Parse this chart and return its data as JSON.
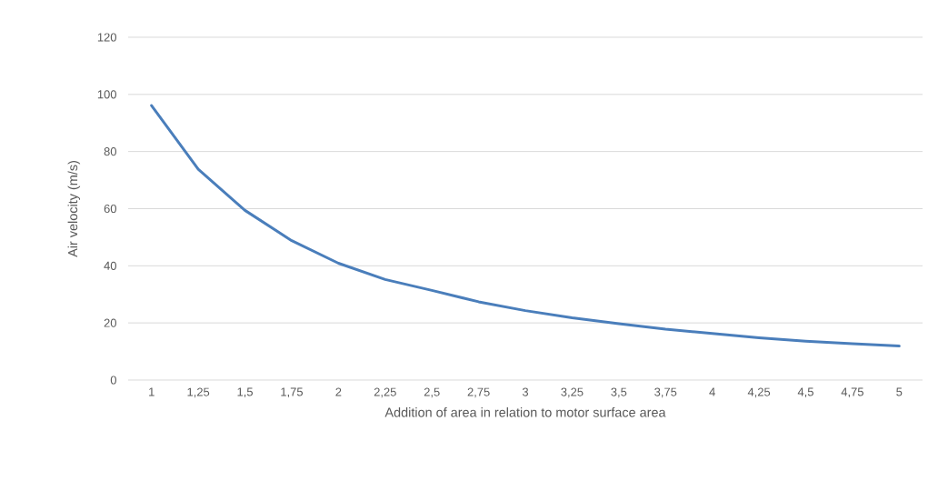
{
  "chart_data": {
    "type": "line",
    "xlabel": "Addition of area in relation to motor surface area",
    "ylabel": "Air velocity (m/s)",
    "categories": [
      "1",
      "1,25",
      "1,5",
      "1,75",
      "2",
      "2,25",
      "2,5",
      "2,75",
      "3",
      "3,25",
      "3,5",
      "3,75",
      "4",
      "4,25",
      "4,5",
      "4,75",
      "5"
    ],
    "series": [
      {
        "color": "#4a7ebb",
        "values": [
          96.1,
          73.8,
          59.4,
          48.8,
          40.9,
          35.2,
          31.4,
          27.4,
          24.3,
          21.8,
          19.7,
          17.8,
          16.3,
          14.8,
          13.6,
          12.7,
          11.9
        ]
      }
    ],
    "ylim": [
      0,
      120
    ],
    "yticks": [
      0,
      20,
      40,
      60,
      80,
      100,
      120
    ],
    "grid": "y",
    "marker": "none",
    "line_style": "solid"
  }
}
